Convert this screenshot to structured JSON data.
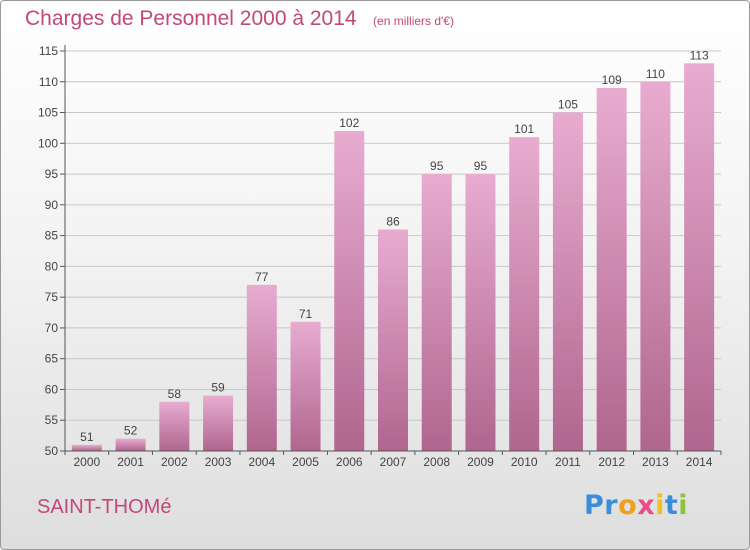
{
  "colors": {
    "accent": "#c2487a",
    "bar_light": "#e8acd0",
    "bar_dark": "#b0668e",
    "grid": "#c8c8c8",
    "axis": "#555555"
  },
  "commune": "SAINT-THOMé",
  "logo": {
    "text": "Proxiti",
    "letters": [
      {
        "ch": "P",
        "color": "#3a8ed8"
      },
      {
        "ch": "r",
        "color": "#3a8ed8"
      },
      {
        "ch": "o",
        "color": "#f0a020"
      },
      {
        "ch": "x",
        "color": "#e84c8c"
      },
      {
        "ch": "i",
        "color": "#f0c020"
      },
      {
        "ch": "t",
        "color": "#3a8ed8"
      },
      {
        "ch": "i",
        "color": "#8cc43c"
      }
    ]
  },
  "chart_data": {
    "type": "bar",
    "title": "Charges de Personnel 2000 à 2014",
    "subtitle": "(en milliers d'€)",
    "xlabel": "",
    "ylabel": "",
    "categories": [
      "2000",
      "2001",
      "2002",
      "2003",
      "2004",
      "2005",
      "2006",
      "2007",
      "2008",
      "2009",
      "2010",
      "2011",
      "2012",
      "2013",
      "2014"
    ],
    "values": [
      51,
      52,
      58,
      59,
      77,
      71,
      102,
      86,
      95,
      95,
      101,
      105,
      109,
      110,
      113
    ],
    "ylim": [
      50,
      115
    ],
    "yticks": [
      50,
      55,
      60,
      65,
      70,
      75,
      80,
      85,
      90,
      95,
      100,
      105,
      110,
      115
    ],
    "grid": true,
    "legend": "none"
  }
}
